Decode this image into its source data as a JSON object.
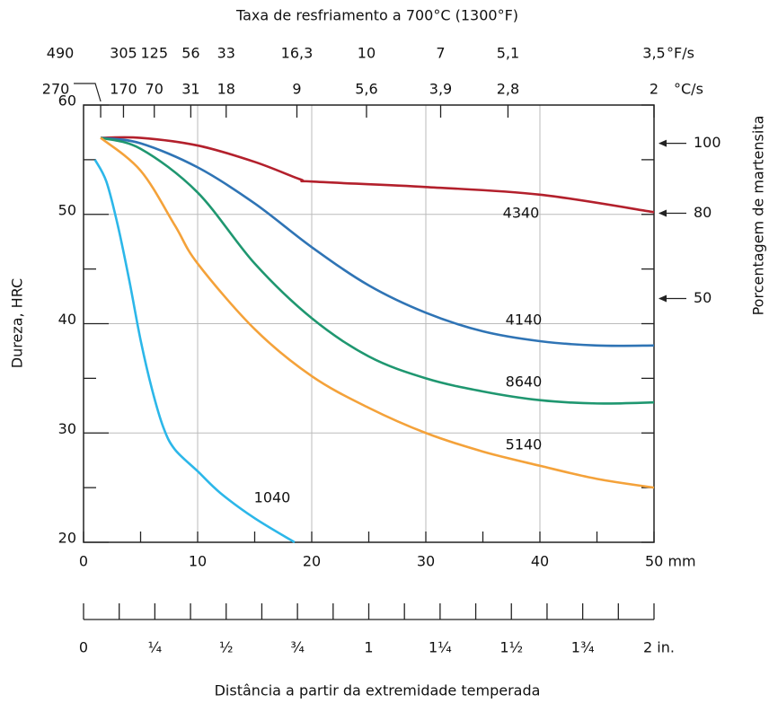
{
  "chart_data": {
    "type": "line",
    "title": "Taxa de resfriamento a 700°C (1300°F)",
    "x_label": "Distância a partir da extremidade temperada",
    "y_label": "Dureza, HRC",
    "y2_label": "Porcentagem de martensita",
    "xlim": [
      0,
      50
    ],
    "ylim": [
      20,
      60
    ],
    "xticks": [
      0,
      10,
      20,
      30,
      40,
      {
        "value": 50,
        "label": "50 mm"
      }
    ],
    "xminorticks": [
      5,
      15,
      25,
      35,
      45
    ],
    "yticks": [
      20,
      30,
      40,
      50,
      60
    ],
    "yminorticks": [
      25,
      35,
      45,
      55
    ],
    "grid": true,
    "inch_lim": [
      0,
      2
    ],
    "inch_ticks": [
      {
        "value": 0,
        "label": "0"
      },
      {
        "value": 0.25,
        "label": "¼"
      },
      {
        "value": 0.5,
        "label": "½"
      },
      {
        "value": 0.75,
        "label": "¾"
      },
      {
        "value": 1,
        "label": "1"
      },
      {
        "value": 1.25,
        "label": "1¼"
      },
      {
        "value": 1.5,
        "label": "1½"
      },
      {
        "value": 1.75,
        "label": "1¾"
      },
      {
        "value": 2,
        "label": "2 in."
      }
    ],
    "inch_minor_ticks": [
      0.125,
      0.375,
      0.625,
      0.875,
      1.125,
      1.375,
      1.625,
      1.875
    ],
    "fs_ticks": [
      {
        "value": 1.5,
        "label": "490"
      },
      {
        "value": 3.5,
        "label": "305"
      },
      {
        "value": 6.2,
        "label": "125"
      },
      {
        "value": 9.4,
        "label": "56"
      },
      {
        "value": 12.5,
        "label": "33"
      },
      {
        "value": 18.7,
        "label": "16,3"
      },
      {
        "value": 24.8,
        "label": "10"
      },
      {
        "value": 31.3,
        "label": "7"
      },
      {
        "value": 37.2,
        "label": "5,1"
      },
      {
        "value": 50,
        "label": "3,5"
      }
    ],
    "fs_unit": "°F/s",
    "cs_ticks": [
      {
        "value": 1.5,
        "label": "270"
      },
      {
        "value": 3.5,
        "label": "170"
      },
      {
        "value": 6.2,
        "label": "70"
      },
      {
        "value": 9.4,
        "label": "31"
      },
      {
        "value": 12.5,
        "label": "18"
      },
      {
        "value": 18.7,
        "label": "9"
      },
      {
        "value": 24.8,
        "label": "5,6"
      },
      {
        "value": 31.3,
        "label": "3,9"
      },
      {
        "value": 37.2,
        "label": "2,8"
      },
      {
        "value": 50,
        "label": "2"
      }
    ],
    "cs_unit": "°C/s",
    "martensite_marks": [
      {
        "value": 56.5,
        "label": "100"
      },
      {
        "value": 50.1,
        "label": "80"
      },
      {
        "value": 42.3,
        "label": "50"
      }
    ],
    "series": [
      {
        "name": "4340",
        "color": "#b3202c",
        "x": [
          1.5,
          5,
          10,
          15,
          19,
          20,
          30,
          40,
          50
        ],
        "values": [
          57,
          57,
          56.3,
          54.8,
          53.2,
          53,
          52.5,
          51.8,
          50.2
        ]
      },
      {
        "name": "4140",
        "color": "#2f74b5",
        "x": [
          1.5,
          5,
          10,
          15,
          20,
          25,
          30,
          35,
          40,
          45,
          50
        ],
        "values": [
          57,
          56.5,
          54.3,
          51,
          47,
          43.5,
          41,
          39.3,
          38.4,
          38,
          38
        ]
      },
      {
        "name": "8640",
        "color": "#1f9770",
        "x": [
          1.5,
          5,
          10,
          15,
          20,
          25,
          30,
          35,
          40,
          45,
          50
        ],
        "values": [
          57,
          56,
          52,
          45.5,
          40.5,
          37,
          35,
          33.8,
          33,
          32.7,
          32.8
        ]
      },
      {
        "name": "5140",
        "color": "#f4a23a",
        "x": [
          1.5,
          5,
          8,
          10,
          15,
          20,
          25,
          30,
          35,
          40,
          45,
          50
        ],
        "values": [
          57,
          54,
          49,
          45.5,
          39.5,
          35.2,
          32.3,
          30,
          28.3,
          27,
          25.8,
          25
        ]
      },
      {
        "name": "1040",
        "color": "#2cb7e9",
        "x": [
          1,
          2,
          3,
          4,
          5,
          6,
          7,
          8,
          10,
          12,
          15,
          18.5
        ],
        "values": [
          55,
          53,
          49,
          44,
          38.5,
          34,
          30.5,
          28.5,
          26.5,
          24.5,
          22.2,
          20
        ]
      }
    ]
  }
}
